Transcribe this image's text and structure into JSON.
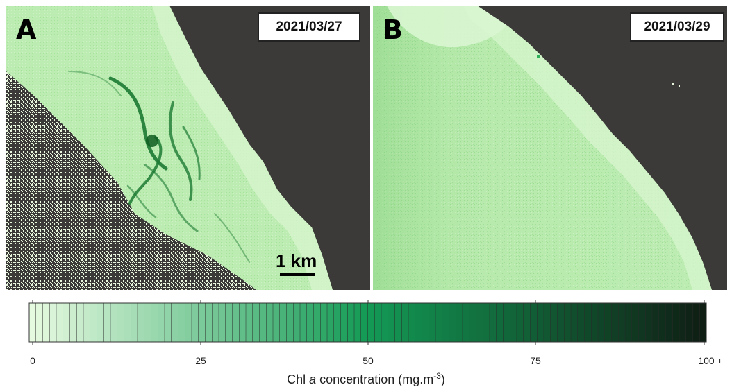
{
  "panels": [
    {
      "letter": "A",
      "date": "2021/03/27"
    },
    {
      "letter": "B",
      "date": "2021/03/29"
    }
  ],
  "scale_bar": {
    "label": "1 km"
  },
  "colorbar": {
    "ticks": [
      "0",
      "25",
      "50",
      "75",
      "100 +"
    ],
    "title_pre": "Chl ",
    "title_italic": "a",
    "title_post": " concentration (mg.m",
    "title_sup": "-3",
    "title_end": ")",
    "colors": {
      "low": "#e6fae0",
      "mid": "#139a55",
      "high": "#0f1f14"
    }
  },
  "colors": {
    "land": "#3c3a39",
    "water_light": "#c9efc0",
    "water_mid": "#a6e39a",
    "chl_dark": "#0f6e2a"
  }
}
